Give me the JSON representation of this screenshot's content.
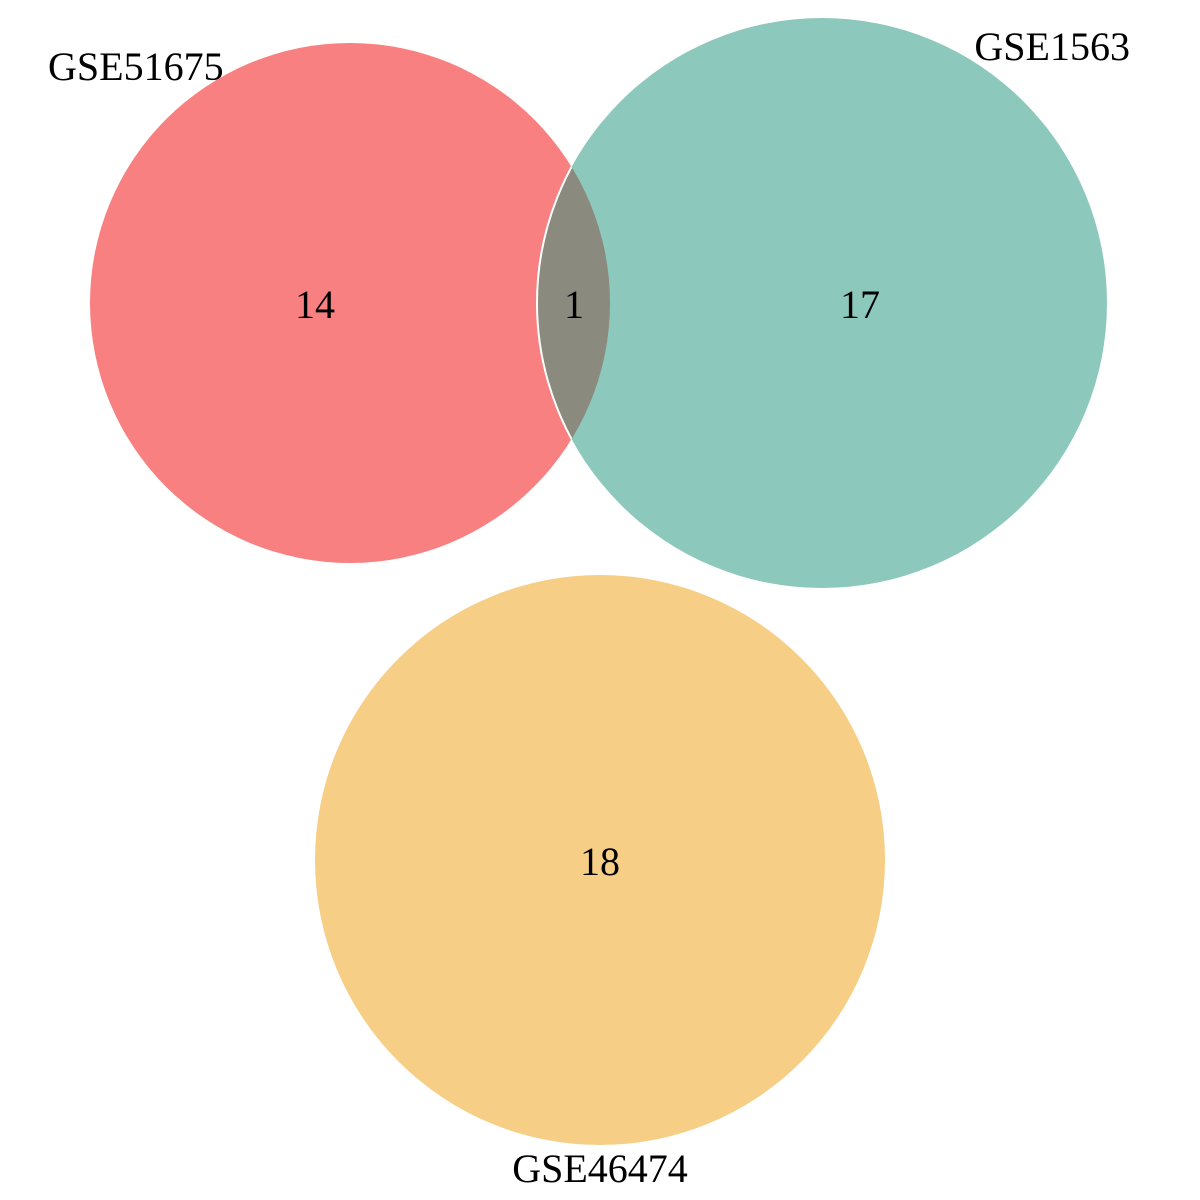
{
  "sets": [
    {
      "id": "a",
      "name": "GSE51675",
      "only_count": "14",
      "color": "#F88080"
    },
    {
      "id": "b",
      "name": "GSE1563",
      "only_count": "17",
      "color": "#8DC8BC"
    },
    {
      "id": "c",
      "name": "GSE46474",
      "only_count": "18",
      "color": "#F6CE85"
    }
  ],
  "intersections": {
    "a_b": {
      "count": "1",
      "color": "#8A8A7E"
    }
  }
}
